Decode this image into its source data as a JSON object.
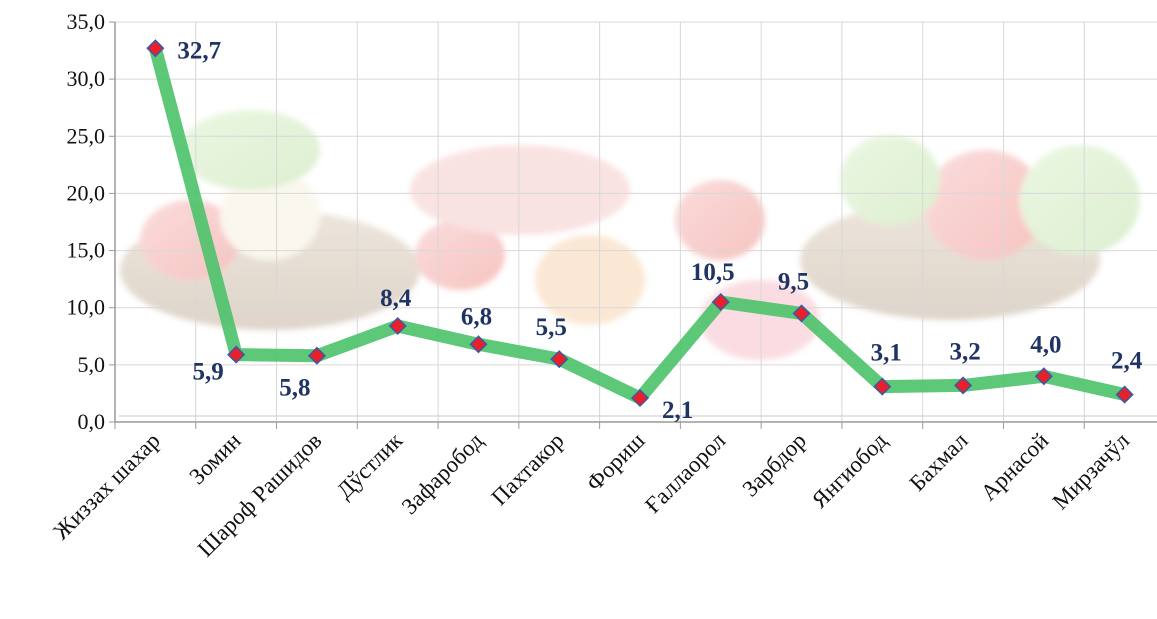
{
  "chart_data": {
    "type": "line",
    "title": "",
    "xlabel": "",
    "ylabel": "",
    "categories": [
      "Жиззах шахар",
      "Зомин",
      "Шароф Рашидов",
      "Дўстлик",
      "Зафаробод",
      "Пахтакор",
      "Фориш",
      "Ғаллаорол",
      "Зарбдор",
      "Янгиобод",
      "Бахмал",
      "Арнасой",
      "Мирзачўл"
    ],
    "series": [
      {
        "values": [
          32.7,
          5.9,
          5.8,
          8.4,
          6.8,
          5.5,
          2.1,
          10.5,
          9.5,
          3.1,
          3.2,
          4.0,
          2.4
        ],
        "value_labels": [
          "32,7",
          "5,9",
          "5,8",
          "8,4",
          "6,8",
          "5,5",
          "2,1",
          "10,5",
          "9,5",
          "3,1",
          "3,2",
          "4,0",
          "2,4"
        ]
      }
    ],
    "ylim": [
      0,
      35
    ],
    "yticks": [
      0,
      5,
      10,
      15,
      20,
      25,
      30,
      35
    ],
    "ytick_labels": [
      "0,0",
      "5,0",
      "10,0",
      "15,0",
      "20,0",
      "25,0",
      "30,0",
      "35,0"
    ],
    "grid": true,
    "legend": "none",
    "colors": {
      "line": "#4dc26a",
      "marker": "#e8202a",
      "marker_edge": "#3a5aa8",
      "label": "#1f3464",
      "grid": "#d8d8d8",
      "axis": "#9a9a9a"
    }
  }
}
